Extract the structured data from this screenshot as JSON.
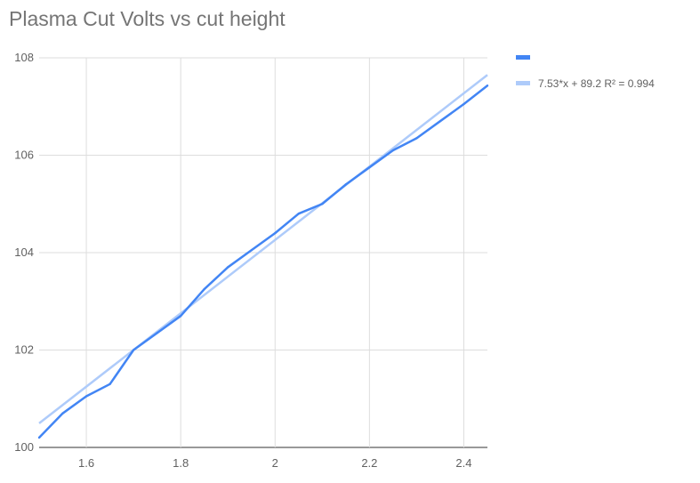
{
  "chart_data": {
    "type": "line",
    "title": "Plasma Cut Volts vs cut height",
    "xlabel": "",
    "ylabel": "",
    "xlim": [
      1.5,
      2.45
    ],
    "ylim": [
      100,
      108
    ],
    "grid": true,
    "legend_position": "right",
    "x_ticks": [
      "1.6",
      "1.8",
      "2",
      "2.2",
      "2.4"
    ],
    "y_ticks": [
      "100",
      "102",
      "104",
      "106",
      "108"
    ],
    "x": [
      1.5,
      1.55,
      1.6,
      1.65,
      1.7,
      1.75,
      1.8,
      1.85,
      1.9,
      1.95,
      2.0,
      2.05,
      2.1,
      2.15,
      2.2,
      2.25,
      2.3,
      2.35,
      2.4,
      2.45
    ],
    "series": [
      {
        "name": "",
        "color": "#4285f4",
        "values": [
          100.2,
          100.7,
          101.05,
          101.3,
          102.0,
          102.35,
          102.7,
          103.25,
          103.7,
          104.05,
          104.4,
          104.8,
          105.0,
          105.4,
          105.75,
          106.1,
          106.35,
          106.7,
          107.05,
          107.43
        ]
      }
    ],
    "trendline": {
      "label": "7.53*x + 89.2 R² = 0.994",
      "slope": 7.53,
      "intercept": 89.2,
      "color": "#aecbfa"
    }
  }
}
